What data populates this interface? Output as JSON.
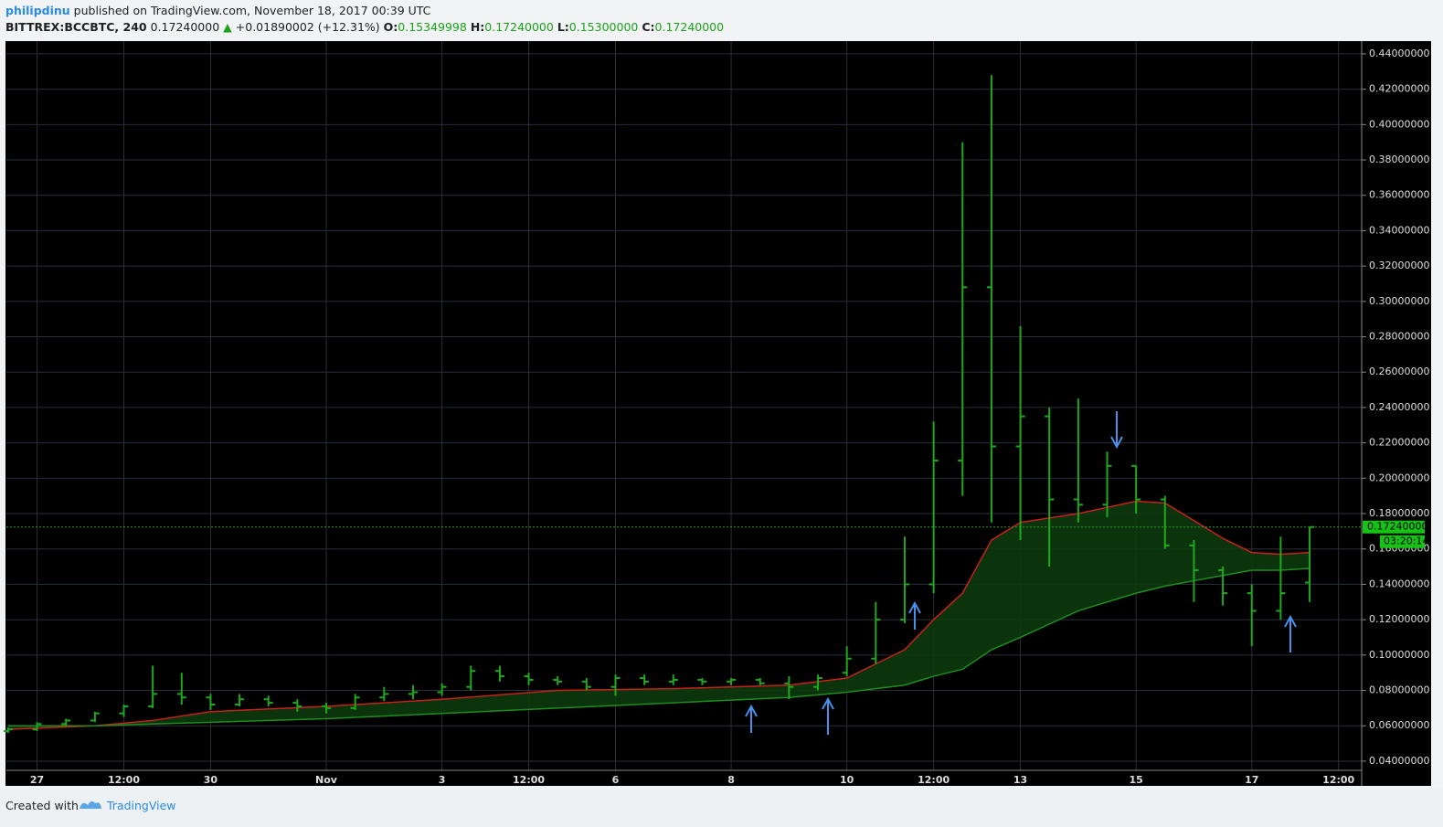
{
  "header": {
    "author": "philipdinu",
    "published": "published on TradingView.com, November 18, 2017 00:39 UTC",
    "symbol": "BITTREX:BCCBTC, 240",
    "last": "0.17240000",
    "change": "+0.01890002 (+12.31%)",
    "o_label": "O:",
    "o": "0.15349998",
    "h_label": "H:",
    "h": "0.17240000",
    "l_label": "L:",
    "l": "0.15300000",
    "c_label": "C:",
    "c": "0.17240000"
  },
  "footer": {
    "created": "Created with",
    "brand": "TradingView"
  },
  "chart_data": {
    "type": "ohlc",
    "bar_color": "#1fa81f",
    "x": [
      0.5,
      1,
      1.5,
      2,
      2.5,
      3,
      3.5,
      4,
      4.5,
      5,
      5.5,
      6,
      6.5,
      7,
      7.5,
      8,
      8.5,
      9,
      9.5,
      10,
      10.5,
      11,
      11.5,
      12,
      12.5,
      13,
      13.5,
      14,
      14.5,
      15,
      15.5,
      16,
      16.5,
      17,
      17.5,
      18,
      18.5,
      19,
      19.5,
      20,
      20.5,
      21,
      21.5,
      22,
      22.5,
      23
    ],
    "open": [
      0.057,
      0.058,
      0.061,
      0.063,
      0.067,
      0.071,
      0.078,
      0.076,
      0.072,
      0.075,
      0.073,
      0.071,
      0.07,
      0.076,
      0.078,
      0.079,
      0.082,
      0.091,
      0.088,
      0.086,
      0.085,
      0.082,
      0.087,
      0.085,
      0.086,
      0.085,
      0.086,
      0.084,
      0.082,
      0.09,
      0.098,
      0.12,
      0.14,
      0.21,
      0.308,
      0.218,
      0.235,
      0.188,
      0.185,
      0.207,
      0.188,
      0.162,
      0.148,
      0.135,
      0.125,
      0.141
    ],
    "high": [
      0.059,
      0.062,
      0.064,
      0.068,
      0.072,
      0.094,
      0.09,
      0.078,
      0.078,
      0.077,
      0.075,
      0.073,
      0.078,
      0.082,
      0.083,
      0.084,
      0.094,
      0.094,
      0.09,
      0.088,
      0.087,
      0.089,
      0.089,
      0.089,
      0.087,
      0.087,
      0.087,
      0.088,
      0.089,
      0.105,
      0.13,
      0.167,
      0.232,
      0.39,
      0.428,
      0.286,
      0.24,
      0.245,
      0.215,
      0.207,
      0.19,
      0.165,
      0.15,
      0.14,
      0.167,
      0.1724
    ],
    "low": [
      0.056,
      0.057,
      0.06,
      0.062,
      0.065,
      0.07,
      0.072,
      0.069,
      0.071,
      0.071,
      0.068,
      0.067,
      0.069,
      0.074,
      0.075,
      0.077,
      0.08,
      0.085,
      0.083,
      0.083,
      0.08,
      0.077,
      0.083,
      0.083,
      0.083,
      0.083,
      0.083,
      0.075,
      0.08,
      0.088,
      0.095,
      0.118,
      0.135,
      0.19,
      0.175,
      0.165,
      0.15,
      0.175,
      0.178,
      0.18,
      0.16,
      0.13,
      0.128,
      0.105,
      0.12,
      0.13
    ],
    "close": [
      0.058,
      0.061,
      0.063,
      0.067,
      0.071,
      0.078,
      0.076,
      0.072,
      0.075,
      0.073,
      0.071,
      0.07,
      0.076,
      0.078,
      0.079,
      0.082,
      0.091,
      0.088,
      0.086,
      0.085,
      0.082,
      0.087,
      0.085,
      0.086,
      0.085,
      0.086,
      0.084,
      0.082,
      0.087,
      0.098,
      0.12,
      0.14,
      0.21,
      0.308,
      0.218,
      0.235,
      0.188,
      0.185,
      0.207,
      0.188,
      0.162,
      0.148,
      0.135,
      0.125,
      0.135,
      0.1724
    ],
    "indicators": [
      {
        "color": "#c8201c",
        "x": [
          0.5,
          2,
          3,
          4,
          6,
          8,
          10,
          12,
          14,
          15,
          15.5,
          16,
          16.5,
          17,
          17.5,
          18,
          19,
          20,
          20.5,
          21,
          21.5,
          22,
          22.5,
          23
        ],
        "values": [
          0.058,
          0.06,
          0.063,
          0.068,
          0.071,
          0.075,
          0.08,
          0.081,
          0.083,
          0.087,
          0.095,
          0.103,
          0.12,
          0.135,
          0.165,
          0.175,
          0.18,
          0.187,
          0.186,
          0.176,
          0.166,
          0.158,
          0.157,
          0.158
        ]
      },
      {
        "color": "#1e8c1e",
        "x": [
          0.5,
          2,
          3,
          4,
          6,
          8,
          10,
          12,
          14,
          15,
          15.5,
          16,
          16.5,
          17,
          17.5,
          18,
          19,
          20,
          20.5,
          21,
          21.5,
          22,
          22.5,
          23
        ],
        "values": [
          0.06,
          0.06,
          0.061,
          0.062,
          0.064,
          0.067,
          0.07,
          0.073,
          0.076,
          0.079,
          0.081,
          0.083,
          0.088,
          0.092,
          0.103,
          0.11,
          0.125,
          0.135,
          0.139,
          0.142,
          0.145,
          0.148,
          0.148,
          0.149
        ]
      }
    ],
    "last_price": 0.1724,
    "last_price_label": "0.17240000",
    "countdown": "03:20:14",
    "xlim": [
      0.47,
      23.9
    ],
    "xticks": [
      {
        "value": 1,
        "label": "27"
      },
      {
        "value": 2.5,
        "label": "12:00"
      },
      {
        "value": 4,
        "label": "30"
      },
      {
        "value": 6,
        "label": "Nov"
      },
      {
        "value": 8,
        "label": "3"
      },
      {
        "value": 9.5,
        "label": "12:00"
      },
      {
        "value": 11,
        "label": "6"
      },
      {
        "value": 13,
        "label": "8"
      },
      {
        "value": 15,
        "label": "10"
      },
      {
        "value": 16.5,
        "label": "12:00"
      },
      {
        "value": 18,
        "label": "13"
      },
      {
        "value": 20,
        "label": "15"
      },
      {
        "value": 22,
        "label": "17"
      },
      {
        "value": 23.5,
        "label": "12:00"
      }
    ],
    "ylim": [
      0.0348,
      0.4472
    ],
    "yticks": [
      {
        "value": 0.04,
        "label": "0.04000000"
      },
      {
        "value": 0.06,
        "label": "0.06000000"
      },
      {
        "value": 0.08,
        "label": "0.08000000"
      },
      {
        "value": 0.1,
        "label": "0.10000000"
      },
      {
        "value": 0.12,
        "label": "0.12000000"
      },
      {
        "value": 0.14,
        "label": "0.14000000"
      },
      {
        "value": 0.16,
        "label": "0.16000000"
      },
      {
        "value": 0.18,
        "label": "0.18000000"
      },
      {
        "value": 0.2,
        "label": "0.20000000"
      },
      {
        "value": 0.22,
        "label": "0.22000000"
      },
      {
        "value": 0.24,
        "label": "0.24000000"
      },
      {
        "value": 0.26,
        "label": "0.26000000"
      },
      {
        "value": 0.28,
        "label": "0.28000000"
      },
      {
        "value": 0.3,
        "label": "0.30000000"
      },
      {
        "value": 0.32,
        "label": "0.32000000"
      },
      {
        "value": 0.34,
        "label": "0.34000000"
      },
      {
        "value": 0.36,
        "label": "0.36000000"
      },
      {
        "value": 0.38,
        "label": "0.38000000"
      },
      {
        "value": 0.4,
        "label": "0.40000000"
      },
      {
        "value": 0.42,
        "label": "0.42000000"
      },
      {
        "value": 0.44,
        "label": "0.44000000"
      }
    ],
    "grid": true
  }
}
